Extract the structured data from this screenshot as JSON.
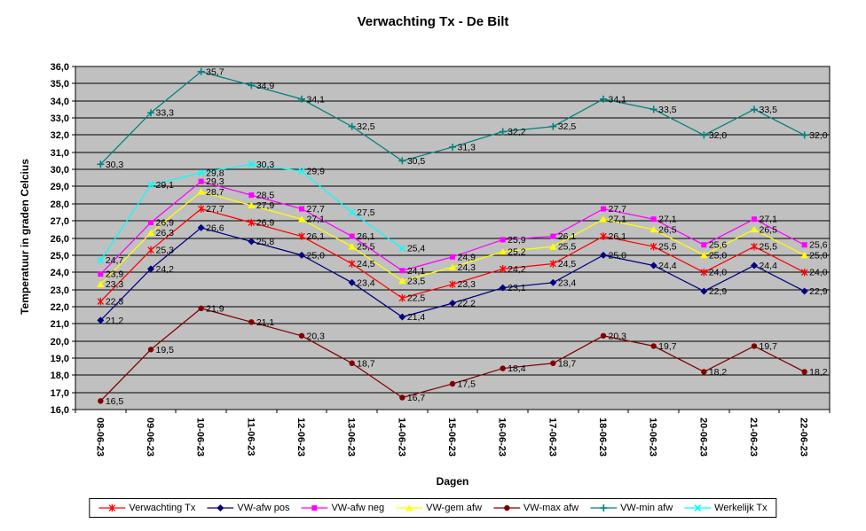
{
  "chart_data": {
    "type": "line",
    "title": "Verwachting Tx - De Bilt",
    "xlabel": "Dagen",
    "ylabel": "Temperatuur in graden Celcius",
    "ylim": [
      16.0,
      36.0
    ],
    "ytick_step": 1.0,
    "ytick_labels": [
      "36,0",
      "35,0",
      "34,0",
      "33,0",
      "32,0",
      "31,0",
      "30,0",
      "29,0",
      "28,0",
      "27,0",
      "26,0",
      "25,0",
      "24,0",
      "23,0",
      "22,0",
      "21,0",
      "20,0",
      "19,0",
      "18,0",
      "17,0",
      "16,0"
    ],
    "grid": "horizontal-major",
    "legend_position": "bottom",
    "data_labels": true,
    "decimal_separator": ",",
    "colors": {
      "plot_bg": "#c0c0c0",
      "grid": "#000000",
      "axis": "#000000",
      "text": "#000000"
    },
    "categories": [
      "08-06-23",
      "09-06-23",
      "10-06-23",
      "11-06-23",
      "12-06-23",
      "13-06-23",
      "14-06-23",
      "15-06-23",
      "16-06-23",
      "17-06-23",
      "18-06-23",
      "19-06-23",
      "20-06-23",
      "21-06-23",
      "22-06-23"
    ],
    "series": [
      {
        "name": "Verwachting Tx",
        "color": "#ff0000",
        "marker": "star",
        "values": [
          22.3,
          25.3,
          27.7,
          26.9,
          26.1,
          24.5,
          22.5,
          23.3,
          24.2,
          24.5,
          26.1,
          25.5,
          24.0,
          25.5,
          24.0
        ]
      },
      {
        "name": "VW-afw pos",
        "color": "#000080",
        "marker": "diamond",
        "values": [
          21.2,
          24.2,
          26.6,
          25.8,
          25.0,
          23.4,
          21.4,
          22.2,
          23.1,
          23.4,
          25.0,
          24.4,
          22.9,
          24.4,
          22.9
        ]
      },
      {
        "name": "VW-afw neg",
        "color": "#ff00ff",
        "marker": "square",
        "values": [
          23.9,
          26.9,
          29.3,
          28.5,
          27.7,
          26.1,
          24.1,
          24.9,
          25.9,
          26.1,
          27.7,
          27.1,
          25.6,
          27.1,
          25.6
        ]
      },
      {
        "name": "VW-gem afw",
        "color": "#ffff00",
        "marker": "triangle",
        "values": [
          23.3,
          26.3,
          28.7,
          27.9,
          27.1,
          25.5,
          23.5,
          24.3,
          25.2,
          25.5,
          27.1,
          26.5,
          25.0,
          26.5,
          25.0
        ]
      },
      {
        "name": "VW-max afw",
        "color": "#800000",
        "marker": "circle",
        "values": [
          16.5,
          19.5,
          21.9,
          21.1,
          20.3,
          18.7,
          16.7,
          17.5,
          18.4,
          18.7,
          20.3,
          19.7,
          18.2,
          19.7,
          18.2
        ]
      },
      {
        "name": "VW-min afw",
        "color": "#008080",
        "marker": "plus",
        "values": [
          30.3,
          33.3,
          35.7,
          34.9,
          34.1,
          32.5,
          30.5,
          31.3,
          32.2,
          32.5,
          34.1,
          33.5,
          32.0,
          33.5,
          32.0
        ]
      },
      {
        "name": "Werkelijk Tx",
        "color": "#00ffff",
        "marker": "x",
        "values": [
          24.7,
          29.1,
          29.8,
          30.3,
          29.9,
          27.5,
          25.4,
          null,
          null,
          null,
          null,
          null,
          null,
          null,
          null
        ]
      }
    ]
  }
}
